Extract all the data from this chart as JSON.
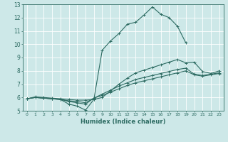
{
  "xlabel": "Humidex (Indice chaleur)",
  "xlim": [
    -0.5,
    23.5
  ],
  "ylim": [
    5,
    13
  ],
  "xticks": [
    0,
    1,
    2,
    3,
    4,
    5,
    6,
    7,
    8,
    9,
    10,
    11,
    12,
    13,
    14,
    15,
    16,
    17,
    18,
    19,
    20,
    21,
    22,
    23
  ],
  "yticks": [
    5,
    6,
    7,
    8,
    9,
    10,
    11,
    12,
    13
  ],
  "bg_color": "#cde8e8",
  "line_color": "#2d6b62",
  "lines": [
    {
      "x": [
        0,
        1,
        2,
        3,
        4,
        5,
        6,
        7,
        8,
        9,
        10,
        11,
        12,
        13,
        14,
        15,
        16,
        17,
        18,
        19,
        20,
        21,
        22,
        23
      ],
      "y": [
        5.9,
        6.05,
        6.0,
        5.95,
        5.9,
        5.85,
        5.8,
        5.8,
        5.85,
        9.55,
        10.25,
        10.8,
        11.5,
        11.65,
        12.2,
        12.8,
        12.25,
        12.0,
        11.35,
        10.1,
        null,
        null,
        null,
        null
      ]
    },
    {
      "x": [
        0,
        1,
        2,
        3,
        4,
        5,
        6,
        7,
        8,
        9,
        10,
        11,
        12,
        13,
        14,
        15,
        16,
        17,
        18,
        19,
        20,
        21,
        22,
        23
      ],
      "y": [
        5.9,
        6.0,
        5.95,
        5.9,
        5.85,
        5.5,
        5.35,
        5.05,
        5.85,
        6.0,
        6.5,
        7.0,
        7.45,
        7.85,
        8.05,
        8.25,
        8.45,
        8.65,
        8.85,
        8.6,
        8.65,
        7.95,
        7.8,
        8.0
      ]
    },
    {
      "x": [
        0,
        1,
        2,
        3,
        4,
        5,
        6,
        7,
        8,
        9,
        10,
        11,
        12,
        13,
        14,
        15,
        16,
        17,
        18,
        19,
        20,
        21,
        22,
        23
      ],
      "y": [
        5.9,
        6.0,
        5.95,
        5.9,
        5.85,
        5.7,
        5.6,
        5.5,
        5.95,
        6.25,
        6.55,
        6.85,
        7.1,
        7.35,
        7.5,
        7.65,
        7.8,
        7.95,
        8.1,
        8.2,
        7.75,
        7.65,
        7.75,
        7.85
      ]
    },
    {
      "x": [
        0,
        1,
        2,
        3,
        4,
        5,
        6,
        7,
        8,
        9,
        10,
        11,
        12,
        13,
        14,
        15,
        16,
        17,
        18,
        19,
        20,
        21,
        22,
        23
      ],
      "y": [
        5.9,
        6.0,
        5.95,
        5.9,
        5.85,
        5.75,
        5.7,
        5.6,
        5.95,
        6.15,
        6.4,
        6.65,
        6.9,
        7.1,
        7.25,
        7.4,
        7.55,
        7.7,
        7.85,
        8.0,
        7.7,
        7.6,
        7.7,
        7.8
      ]
    }
  ]
}
